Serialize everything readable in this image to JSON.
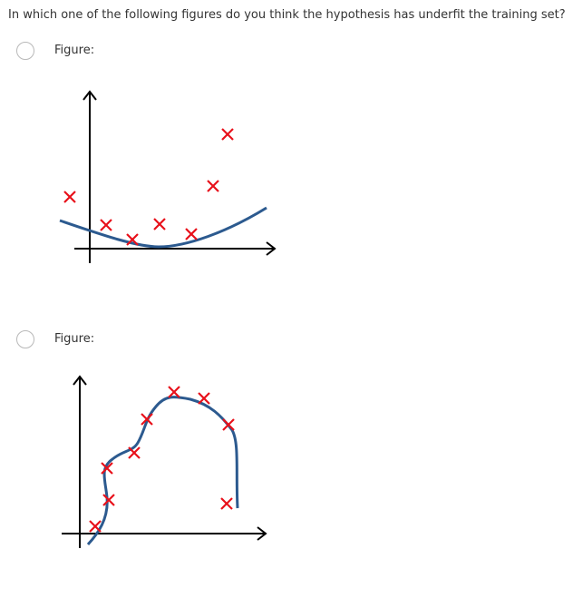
{
  "question": "In which one of the following figures do you think the hypothesis has underfit the training set?",
  "options": [
    {
      "label": "Figure:",
      "selected": false,
      "figure": "quadratic fit curve with scattered data points"
    },
    {
      "label": "Figure:",
      "selected": false,
      "figure": "high-order wiggly fit curve passing through all data points"
    }
  ],
  "colors": {
    "curve": "#2c5a8f",
    "marker": "#e8101a",
    "axis": "#000000"
  }
}
